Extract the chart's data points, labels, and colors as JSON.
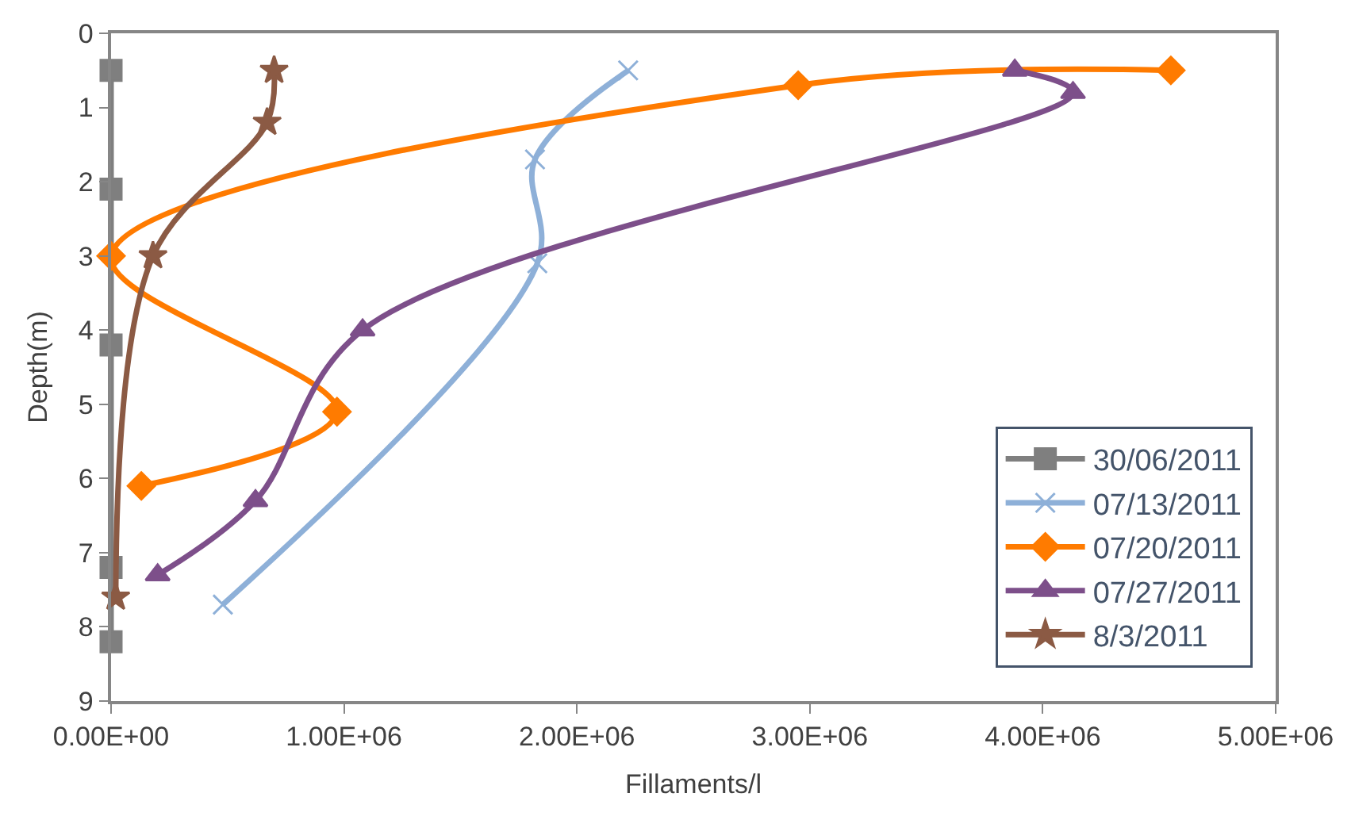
{
  "chart_data": {
    "type": "line",
    "xlabel": "Fillaments/l",
    "ylabel": "Depth(m)",
    "xlim": [
      0,
      5000000
    ],
    "xticks": [
      {
        "value": 0,
        "label": "0.00E+00"
      },
      {
        "value": 1000000,
        "label": "1.00E+06"
      },
      {
        "value": 2000000,
        "label": "2.00E+06"
      },
      {
        "value": 3000000,
        "label": "3.00E+06"
      },
      {
        "value": 4000000,
        "label": "4.00E+06"
      },
      {
        "value": 5000000,
        "label": "5.00E+06"
      }
    ],
    "ylim": [
      9,
      0
    ],
    "yticks": [
      0,
      1,
      2,
      3,
      4,
      5,
      6,
      7,
      8,
      9
    ],
    "grid": false,
    "legend": "bottom right",
    "series": [
      {
        "name": "30/06/2011",
        "color": "#7f7f7f",
        "marker": "square",
        "x": [
          0,
          0,
          0,
          0,
          0
        ],
        "values": [
          0.5,
          2.1,
          4.2,
          7.2,
          8.2
        ]
      },
      {
        "name": "07/13/2011",
        "color": "#8eb0d8",
        "marker": "cross",
        "x": [
          2220000,
          1820000,
          1830000,
          480000
        ],
        "values": [
          0.5,
          1.7,
          3.1,
          7.7
        ]
      },
      {
        "name": "07/20/2011",
        "color": "#ff7b00",
        "marker": "diamond",
        "x": [
          4550000,
          2950000,
          0,
          970000,
          130000
        ],
        "values": [
          0.5,
          0.7,
          3.0,
          5.1,
          6.1
        ]
      },
      {
        "name": "07/27/2011",
        "color": "#7d4f8a",
        "marker": "triangle",
        "x": [
          3880000,
          4130000,
          1080000,
          620000,
          200000
        ],
        "values": [
          0.5,
          0.8,
          4.0,
          6.3,
          7.3
        ]
      },
      {
        "name": "8/3/2011",
        "color": "#8b5a44",
        "marker": "star",
        "x": [
          700000,
          670000,
          180000,
          20000
        ],
        "values": [
          0.5,
          1.2,
          3.0,
          7.6
        ]
      }
    ]
  }
}
